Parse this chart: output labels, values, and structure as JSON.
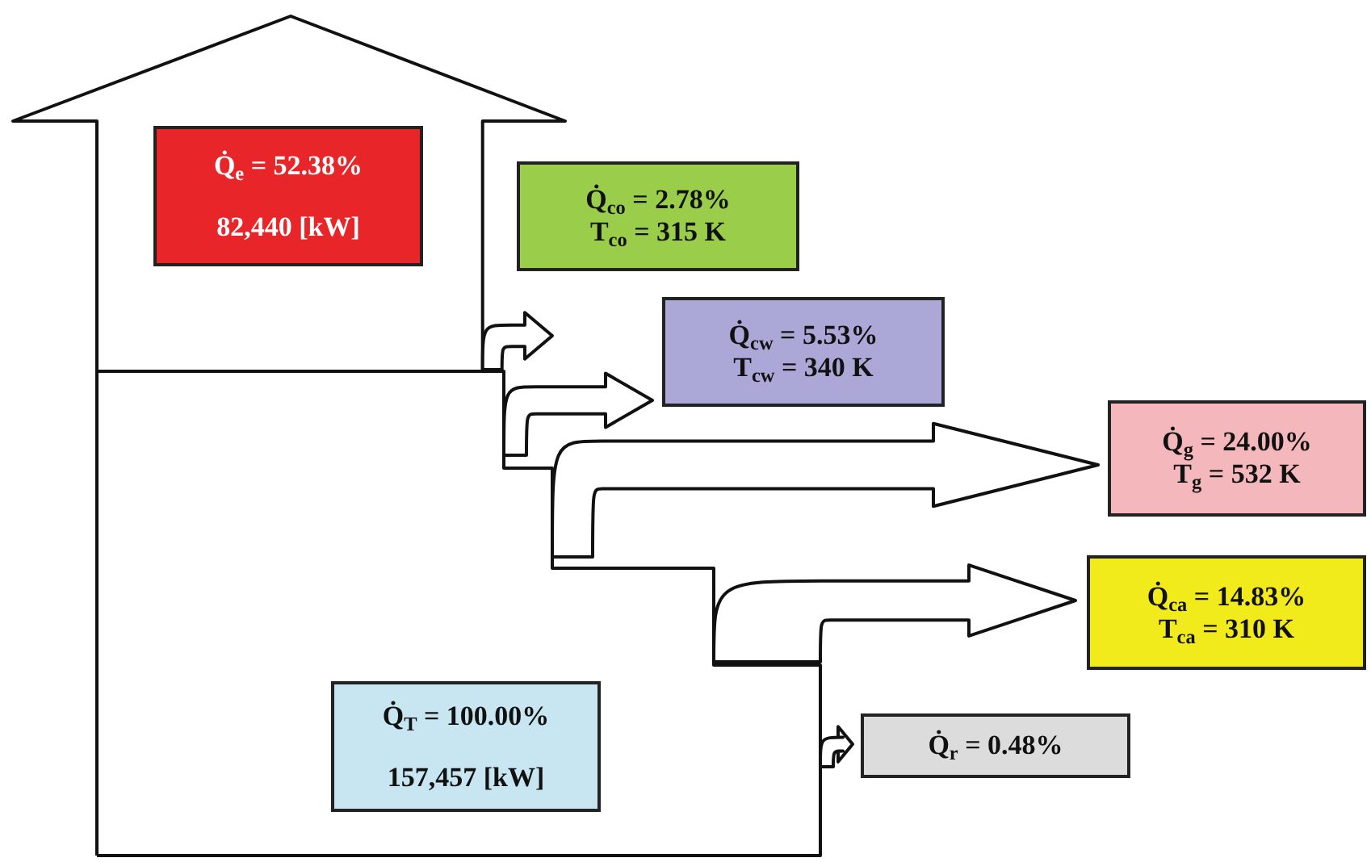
{
  "chart_data": {
    "type": "other",
    "categories": [
      "Q̇$_{e}$ =",
      "Q̇$_{co}$ =",
      "Q̇$_{cw}$ =",
      "Q̇$_{g}$ =",
      "Q̇$_{ca}$ =",
      "Q̇$_{r}$ =",
      "Q̇$_{T}$ ="
    ],
    "values": [
      52.38,
      2.78,
      5.53,
      24.0,
      14.83,
      0.48,
      100.0
    ],
    "value_labels": [
      "52.38%",
      "2.78%",
      "5.53%",
      "24.00%",
      "14.83%",
      "0.48%",
      "100.00%"
    ],
    "annotations": [
      "82,440 [kW]",
      "T$_{co}$ = 315 K",
      "T$_{cw}$ = 340 K",
      "T$_{g}$ = 532 K",
      "T$_{ca}$ = 310 K",
      "157,457 [kW]"
    ],
    "colors": [
      "#e8262a",
      "#9acd4a",
      "#aba8d8",
      "#f4b8bc",
      "#f2eb1c",
      "#dcdcdc",
      "#c7e6f2"
    ]
  }
}
